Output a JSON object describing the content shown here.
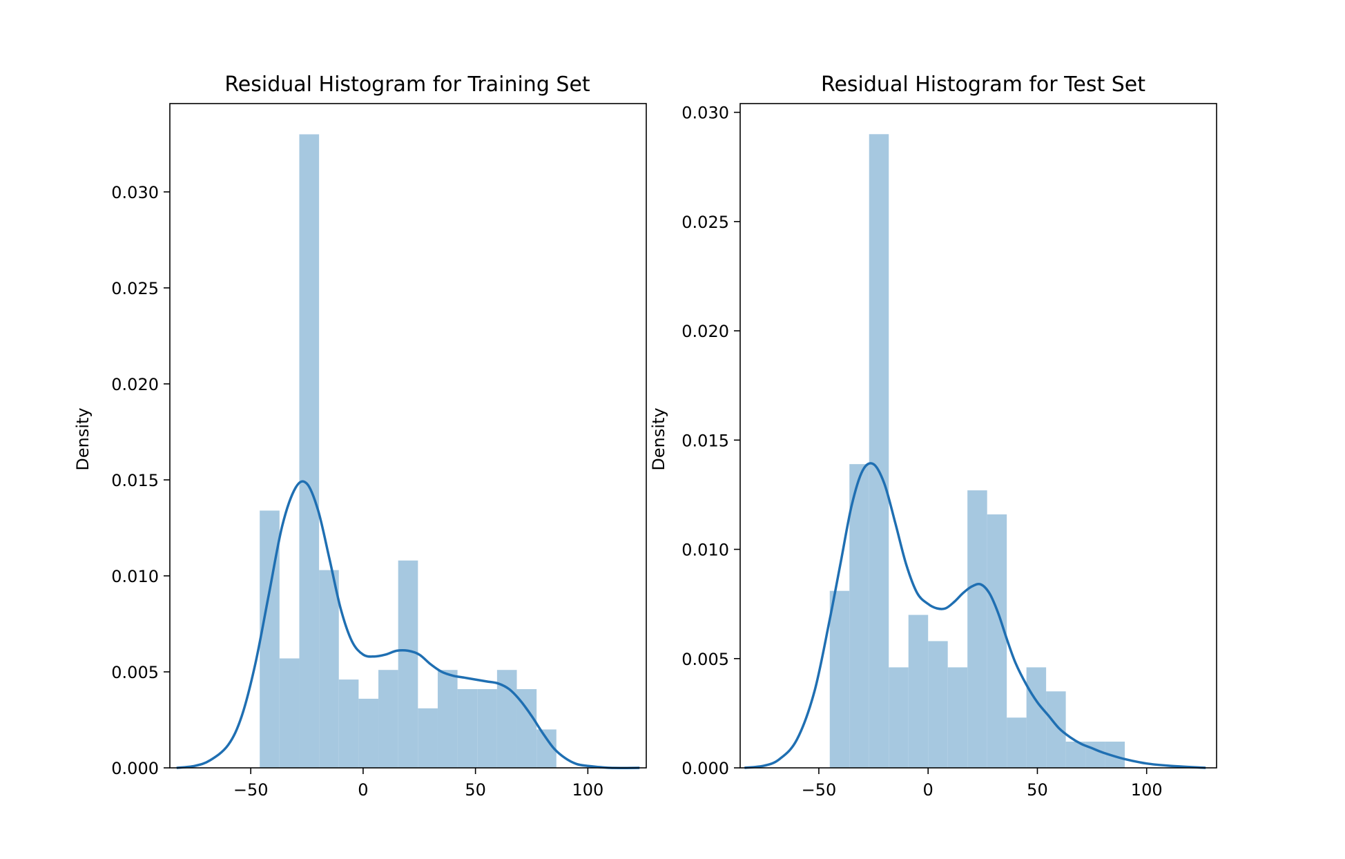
{
  "chart_data": [
    {
      "type": "histogram",
      "title": "Residual Histogram for Training Set",
      "xlabel": "",
      "ylabel": "Density",
      "xlim": [
        -86,
        126
      ],
      "ylim": [
        0,
        0.0346
      ],
      "xticks": [
        -50,
        0,
        50,
        100
      ],
      "xtick_labels": [
        "−50",
        "0",
        "50",
        "100"
      ],
      "yticks": [
        0.0,
        0.005,
        0.01,
        0.015,
        0.02,
        0.025,
        0.03
      ],
      "ytick_labels": [
        "0.000",
        "0.005",
        "0.010",
        "0.015",
        "0.020",
        "0.025",
        "0.030"
      ],
      "grid": false,
      "bins": [
        {
          "x0": -46.0,
          "x1": -37.2,
          "density": 0.0134
        },
        {
          "x0": -37.2,
          "x1": -28.4,
          "density": 0.0057
        },
        {
          "x0": -28.4,
          "x1": -19.6,
          "density": 0.033
        },
        {
          "x0": -19.6,
          "x1": -10.8,
          "density": 0.0103
        },
        {
          "x0": -10.8,
          "x1": -2.0,
          "density": 0.0046
        },
        {
          "x0": -2.0,
          "x1": 6.8,
          "density": 0.0036
        },
        {
          "x0": 6.8,
          "x1": 15.6,
          "density": 0.0051
        },
        {
          "x0": 15.6,
          "x1": 24.4,
          "density": 0.0108
        },
        {
          "x0": 24.4,
          "x1": 33.2,
          "density": 0.0031
        },
        {
          "x0": 33.2,
          "x1": 42.0,
          "density": 0.0051
        },
        {
          "x0": 42.0,
          "x1": 50.8,
          "density": 0.0041
        },
        {
          "x0": 50.8,
          "x1": 59.6,
          "density": 0.0041
        },
        {
          "x0": 59.6,
          "x1": 68.4,
          "density": 0.0051
        },
        {
          "x0": 68.4,
          "x1": 77.2,
          "density": 0.0041
        },
        {
          "x0": 77.2,
          "x1": 86.0,
          "density": 0.002
        }
      ],
      "kde": {
        "x": [
          -83,
          -75,
          -68,
          -60,
          -54,
          -48,
          -42,
          -36,
          -30,
          -25,
          -20,
          -15,
          -10,
          -5,
          0,
          5,
          10,
          15,
          20,
          25,
          30,
          35,
          40,
          45,
          50,
          55,
          60,
          65,
          70,
          75,
          80,
          85,
          90,
          95,
          100,
          110,
          123
        ],
        "y": [
          0.0,
          0.0001,
          0.0004,
          0.0012,
          0.0027,
          0.0054,
          0.009,
          0.0126,
          0.0146,
          0.0148,
          0.0134,
          0.0109,
          0.0083,
          0.0066,
          0.0059,
          0.0058,
          0.0059,
          0.0061,
          0.0061,
          0.0059,
          0.0054,
          0.005,
          0.0048,
          0.0047,
          0.0046,
          0.0045,
          0.0044,
          0.0041,
          0.0035,
          0.0027,
          0.0018,
          0.001,
          0.0005,
          0.0002,
          0.0001,
          0.0,
          0.0
        ]
      },
      "colors": {
        "bar": "#a6c8e0",
        "line": "#1f6fb2"
      }
    },
    {
      "type": "histogram",
      "title": "Residual Histogram for Test Set",
      "xlabel": "",
      "ylabel": "Density",
      "xlim": [
        -86,
        132
      ],
      "ylim": [
        0,
        0.0304
      ],
      "xticks": [
        -50,
        0,
        50,
        100
      ],
      "xtick_labels": [
        "−50",
        "0",
        "50",
        "100"
      ],
      "yticks": [
        0.0,
        0.005,
        0.01,
        0.015,
        0.02,
        0.025,
        0.03
      ],
      "ytick_labels": [
        "0.000",
        "0.005",
        "0.010",
        "0.015",
        "0.020",
        "0.025",
        "0.030"
      ],
      "grid": false,
      "bins": [
        {
          "x0": -45.0,
          "x1": -36.0,
          "density": 0.0081
        },
        {
          "x0": -36.0,
          "x1": -27.0,
          "density": 0.0139
        },
        {
          "x0": -27.0,
          "x1": -18.0,
          "density": 0.029
        },
        {
          "x0": -18.0,
          "x1": -9.0,
          "density": 0.0046
        },
        {
          "x0": -9.0,
          "x1": 0.0,
          "density": 0.007
        },
        {
          "x0": 0.0,
          "x1": 9.0,
          "density": 0.0058
        },
        {
          "x0": 9.0,
          "x1": 18.0,
          "density": 0.0046
        },
        {
          "x0": 18.0,
          "x1": 27.0,
          "density": 0.0127
        },
        {
          "x0": 27.0,
          "x1": 36.0,
          "density": 0.0116
        },
        {
          "x0": 36.0,
          "x1": 45.0,
          "density": 0.0023
        },
        {
          "x0": 45.0,
          "x1": 54.0,
          "density": 0.0046
        },
        {
          "x0": 54.0,
          "x1": 63.0,
          "density": 0.0035
        },
        {
          "x0": 63.0,
          "x1": 72.0,
          "density": 0.0012
        },
        {
          "x0": 72.0,
          "x1": 81.0,
          "density": 0.0012
        },
        {
          "x0": 81.0,
          "x1": 90.0,
          "density": 0.0012
        }
      ],
      "kde": {
        "x": [
          -84,
          -75,
          -68,
          -60,
          -52,
          -45,
          -40,
          -35,
          -30,
          -25,
          -20,
          -15,
          -10,
          -5,
          0,
          4,
          8,
          12,
          16,
          20,
          24,
          28,
          32,
          36,
          40,
          45,
          50,
          55,
          60,
          65,
          70,
          75,
          80,
          90,
          100,
          110,
          127
        ],
        "y": [
          0.0,
          0.0001,
          0.0004,
          0.0013,
          0.0035,
          0.0068,
          0.0094,
          0.012,
          0.0136,
          0.0139,
          0.013,
          0.0112,
          0.0093,
          0.008,
          0.0075,
          0.0073,
          0.0073,
          0.0076,
          0.008,
          0.0083,
          0.0084,
          0.008,
          0.0071,
          0.0059,
          0.0048,
          0.0038,
          0.003,
          0.0024,
          0.0018,
          0.0014,
          0.0011,
          0.0009,
          0.0007,
          0.0004,
          0.0002,
          0.0001,
          0.0
        ]
      },
      "colors": {
        "bar": "#a6c8e0",
        "line": "#1f6fb2"
      }
    }
  ]
}
